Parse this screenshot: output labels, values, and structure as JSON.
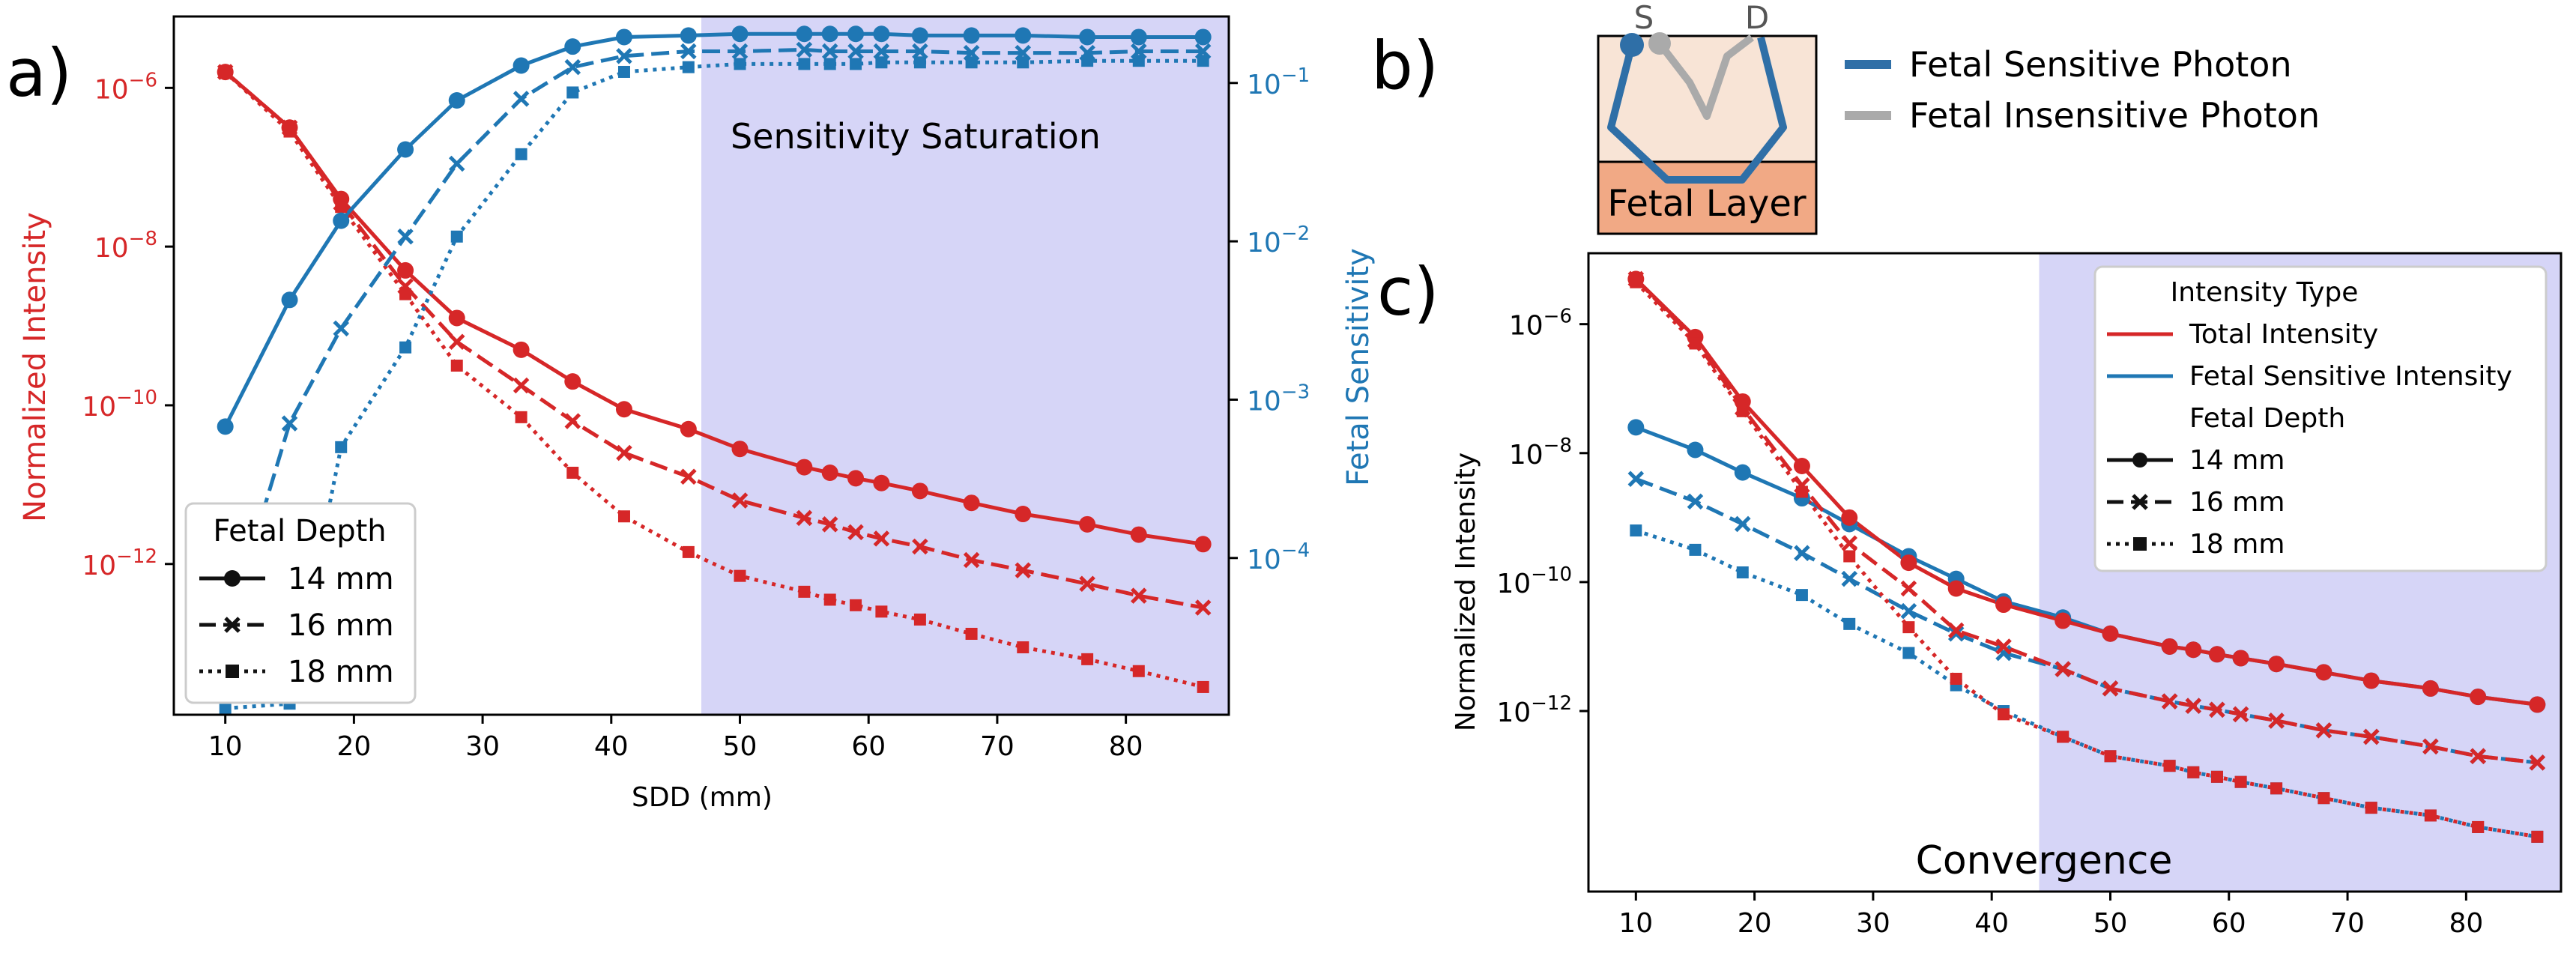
{
  "panel_labels": {
    "a": "a)",
    "b": "b)",
    "c": "c)"
  },
  "colors": {
    "red": "#d62728",
    "blue": "#1f77b4",
    "shade": "#d6d5f7",
    "gray": "#aaaaaa",
    "fetal_layer": "#f1a985",
    "tissue": "#f8e4d6"
  },
  "schematic": {
    "source_label": "S",
    "detector_label": "D",
    "layer_label": "Fetal Layer",
    "legend": [
      "Fetal Sensitive Photon",
      "Fetal Insensitive Photon"
    ]
  },
  "chart_data": [
    {
      "id": "panel-a",
      "type": "line",
      "xlabel": "SDD (mm)",
      "ylabel_left": "Normalized Intensity",
      "ylabel_right": "Fetal Sensitivity",
      "xlim": [
        6,
        88
      ],
      "ylim_left_log10": [
        -13.9,
        -5.1
      ],
      "ylim_right_log10": [
        -4.99,
        -0.58
      ],
      "xticks": [
        "10",
        "20",
        "30",
        "40",
        "50",
        "60",
        "70",
        "80"
      ],
      "yticks_left": [
        {
          "exp": -6,
          "label": "10",
          "sup": "−6"
        },
        {
          "exp": -8,
          "label": "10",
          "sup": "−8"
        },
        {
          "exp": -10,
          "label": "10",
          "sup": "−10"
        },
        {
          "exp": -12,
          "label": "10",
          "sup": "−12"
        }
      ],
      "yticks_right": [
        {
          "exp": -1,
          "label": "10",
          "sup": "−1"
        },
        {
          "exp": -2,
          "label": "10",
          "sup": "−2"
        },
        {
          "exp": -3,
          "label": "10",
          "sup": "−3"
        },
        {
          "exp": -4,
          "label": "10",
          "sup": "−4"
        }
      ],
      "shaded_region": {
        "x_start": 47,
        "x_end": 88,
        "label": "Sensitivity Saturation"
      },
      "x": [
        10,
        15,
        19,
        24,
        28,
        33,
        37,
        41,
        46,
        50,
        55,
        57,
        59,
        61,
        64,
        68,
        72,
        77,
        81,
        86
      ],
      "intensity_series": [
        {
          "name": "14 mm",
          "style": "solid",
          "marker": "circle",
          "log10": [
            -5.8,
            -6.5,
            -7.4,
            -8.3,
            -8.9,
            -9.3,
            -9.7,
            -10.05,
            -10.3,
            -10.55,
            -10.78,
            -10.85,
            -10.92,
            -10.98,
            -11.08,
            -11.23,
            -11.37,
            -11.5,
            -11.63,
            -11.75
          ]
        },
        {
          "name": "16 mm",
          "style": "dashed",
          "marker": "x",
          "log10": [
            -5.8,
            -6.5,
            -7.45,
            -8.5,
            -9.2,
            -9.75,
            -10.2,
            -10.6,
            -10.9,
            -11.2,
            -11.42,
            -11.5,
            -11.6,
            -11.68,
            -11.78,
            -11.95,
            -12.08,
            -12.25,
            -12.4,
            -12.55
          ]
        },
        {
          "name": "18 mm",
          "style": "dotted",
          "marker": "square",
          "log10": [
            -5.8,
            -6.55,
            -7.5,
            -8.6,
            -9.5,
            -10.15,
            -10.85,
            -11.4,
            -11.85,
            -12.15,
            -12.35,
            -12.45,
            -12.52,
            -12.6,
            -12.7,
            -12.88,
            -13.05,
            -13.2,
            -13.35,
            -13.55
          ]
        }
      ],
      "sensitivity_series": [
        {
          "name": "14 mm",
          "style": "solid",
          "marker": "circle",
          "log10": [
            -3.17,
            -2.37,
            -1.87,
            -1.42,
            -1.11,
            -0.89,
            -0.77,
            -0.71,
            -0.7,
            -0.69,
            -0.69,
            -0.69,
            -0.69,
            -0.69,
            -0.7,
            -0.7,
            -0.7,
            -0.71,
            -0.71,
            -0.71
          ]
        },
        {
          "name": "16 mm",
          "style": "dashed",
          "marker": "x",
          "log10": [
            -4.5,
            -3.15,
            -2.55,
            -1.97,
            -1.51,
            -1.1,
            -0.9,
            -0.83,
            -0.8,
            -0.8,
            -0.79,
            -0.8,
            -0.8,
            -0.8,
            -0.8,
            -0.81,
            -0.81,
            -0.81,
            -0.8,
            -0.8
          ]
        },
        {
          "name": "18 mm",
          "style": "dotted",
          "marker": "square",
          "log10": [
            -4.95,
            -4.92,
            -3.3,
            -2.67,
            -1.97,
            -1.45,
            -1.06,
            -0.93,
            -0.9,
            -0.88,
            -0.88,
            -0.88,
            -0.88,
            -0.87,
            -0.87,
            -0.87,
            -0.87,
            -0.86,
            -0.86,
            -0.86
          ]
        }
      ],
      "legend": {
        "title": "Fetal Depth",
        "entries": [
          "14 mm",
          "16 mm",
          "18 mm"
        ],
        "location": "lower-left"
      }
    },
    {
      "id": "panel-c",
      "type": "line",
      "xlabel": "",
      "ylabel": "Normalized Intensity",
      "xlim": [
        6,
        88
      ],
      "ylim_log10": [
        -14.8,
        -4.9
      ],
      "xticks": [
        "10",
        "20",
        "30",
        "40",
        "50",
        "60",
        "70",
        "80"
      ],
      "yticks": [
        {
          "exp": -6,
          "label": "10",
          "sup": "−6"
        },
        {
          "exp": -8,
          "label": "10",
          "sup": "−8"
        },
        {
          "exp": -10,
          "label": "10",
          "sup": "−10"
        },
        {
          "exp": -12,
          "label": "10",
          "sup": "−12"
        }
      ],
      "shaded_region": {
        "x_start": 44,
        "x_end": 88,
        "label": "Convergence"
      },
      "x": [
        10,
        15,
        19,
        24,
        28,
        33,
        37,
        41,
        46,
        50,
        55,
        57,
        59,
        61,
        64,
        68,
        72,
        77,
        81,
        86
      ],
      "total_series": [
        {
          "name": "14 mm",
          "style": "solid",
          "marker": "circle",
          "log10": [
            -5.3,
            -6.2,
            -7.2,
            -8.2,
            -9.0,
            -9.7,
            -10.1,
            -10.35,
            -10.6,
            -10.8,
            -11.0,
            -11.05,
            -11.12,
            -11.18,
            -11.27,
            -11.4,
            -11.53,
            -11.65,
            -11.78,
            -11.9
          ]
        },
        {
          "name": "16 mm",
          "style": "dashed",
          "marker": "x",
          "log10": [
            -5.3,
            -6.25,
            -7.3,
            -8.5,
            -9.4,
            -10.1,
            -10.75,
            -11.0,
            -11.35,
            -11.65,
            -11.85,
            -11.92,
            -11.98,
            -12.05,
            -12.15,
            -12.3,
            -12.4,
            -12.55,
            -12.7,
            -12.8
          ]
        },
        {
          "name": "18 mm",
          "style": "dotted",
          "marker": "square",
          "log10": [
            -5.35,
            -6.3,
            -7.35,
            -8.6,
            -9.6,
            -10.7,
            -11.5,
            -12.05,
            -12.4,
            -12.7,
            -12.85,
            -12.95,
            -13.02,
            -13.1,
            -13.2,
            -13.35,
            -13.5,
            -13.62,
            -13.8,
            -13.95
          ]
        }
      ],
      "fetal_series": [
        {
          "name": "14 mm",
          "style": "solid",
          "marker": "circle",
          "log10": [
            -7.6,
            -7.95,
            -8.3,
            -8.7,
            -9.1,
            -9.6,
            -9.95,
            -10.3,
            -10.55,
            -10.8,
            -11.0,
            -11.05,
            -11.12,
            -11.18,
            -11.27,
            -11.4,
            -11.53,
            -11.65,
            -11.78,
            -11.9
          ]
        },
        {
          "name": "16 mm",
          "style": "dashed",
          "marker": "x",
          "log10": [
            -8.4,
            -8.75,
            -9.1,
            -9.55,
            -9.95,
            -10.45,
            -10.8,
            -11.1,
            -11.35,
            -11.65,
            -11.85,
            -11.92,
            -11.98,
            -12.05,
            -12.15,
            -12.3,
            -12.4,
            -12.55,
            -12.7,
            -12.8
          ]
        },
        {
          "name": "18 mm",
          "style": "dotted",
          "marker": "square",
          "log10": [
            -9.2,
            -9.5,
            -9.85,
            -10.2,
            -10.65,
            -11.1,
            -11.6,
            -12.0,
            -12.4,
            -12.7,
            -12.85,
            -12.95,
            -13.02,
            -13.1,
            -13.2,
            -13.35,
            -13.5,
            -13.62,
            -13.8,
            -13.95
          ]
        }
      ],
      "legend": {
        "title1": "Intensity Type",
        "type_entries": [
          "Total Intensity",
          "Fetal Sensitive Intensity"
        ],
        "title2": "Fetal Depth",
        "depth_entries": [
          "14 mm",
          "16 mm",
          "18 mm"
        ],
        "location": "top-right"
      }
    }
  ]
}
